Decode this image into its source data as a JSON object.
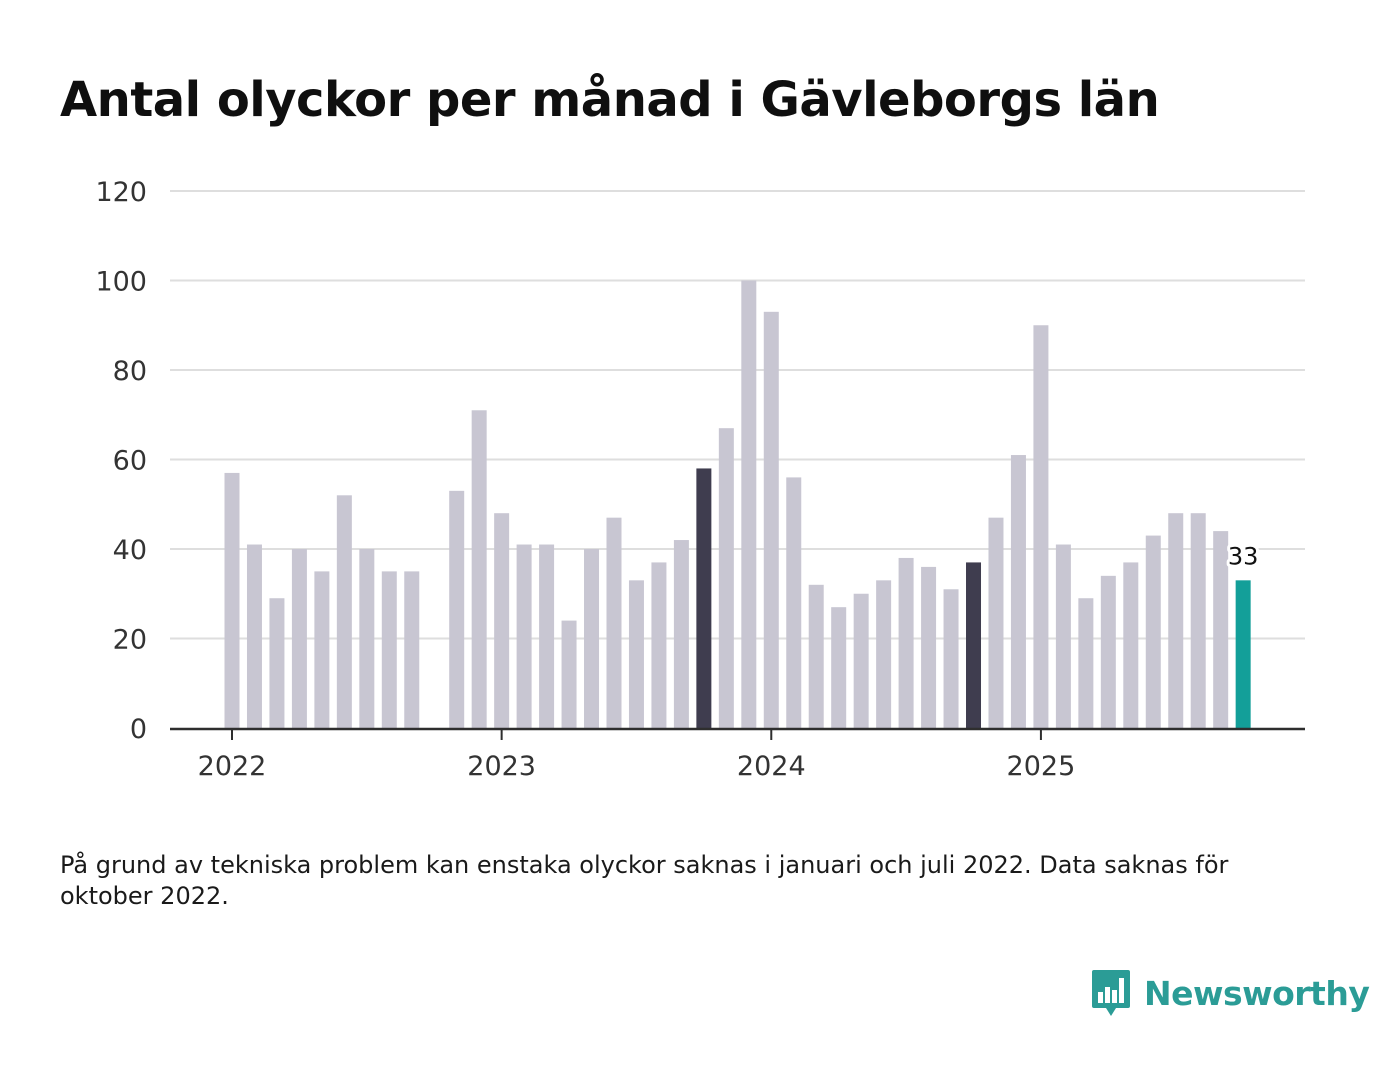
{
  "title": "Antal olyckor per månad i Gävleborgs län",
  "note": "På grund av tekniska problem kan enstaka olyckor saknas i januari och juli 2022. Data saknas för oktober 2022.",
  "brand": {
    "name": "Newsworthy",
    "logo_icon": "bar-chart-speech-bubble-icon"
  },
  "colors": {
    "bar_default": "#c8c6d2",
    "bar_highlight": "#3f3d4f",
    "bar_latest": "#139f99",
    "grid": "#dedede",
    "axis": "#2e2e2e",
    "brand": "#2b9c96"
  },
  "chart_data": {
    "type": "bar",
    "title": "Antal olyckor per månad i Gävleborgs län",
    "xlabel": "",
    "ylabel": "",
    "ylim": [
      0,
      120
    ],
    "yticks": [
      "0",
      "20",
      "40",
      "60",
      "80",
      "100",
      "120"
    ],
    "xticks": [
      {
        "label": "2022",
        "month_index": 0
      },
      {
        "label": "2023",
        "month_index": 12
      },
      {
        "label": "2024",
        "month_index": 24
      },
      {
        "label": "2025",
        "month_index": 36
      }
    ],
    "grid": true,
    "start": "2022-01",
    "values": [
      57,
      41,
      29,
      40,
      35,
      52,
      40,
      35,
      35,
      null,
      53,
      71,
      48,
      41,
      41,
      24,
      40,
      47,
      33,
      37,
      42,
      58,
      67,
      100,
      93,
      56,
      32,
      27,
      30,
      33,
      38,
      36,
      31,
      37,
      47,
      61,
      90,
      41,
      29,
      34,
      37,
      43,
      48,
      48,
      44,
      33
    ],
    "highlighted_indices": [
      21,
      33
    ],
    "latest_index": 45,
    "latest_label": "33"
  }
}
